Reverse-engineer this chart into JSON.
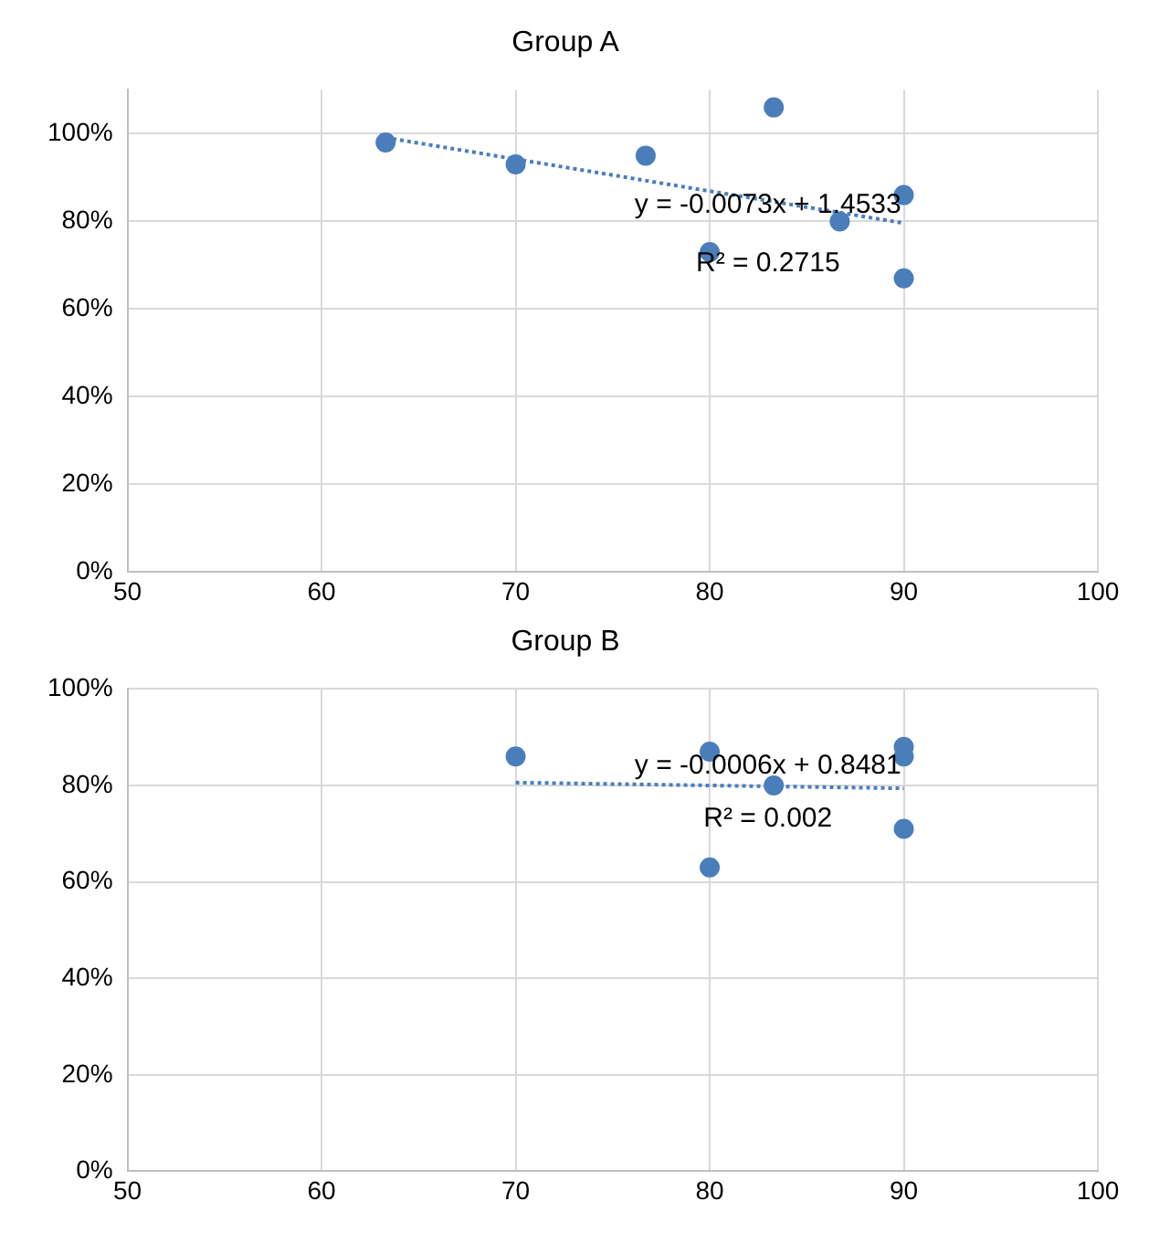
{
  "chart_data": [
    {
      "type": "scatter",
      "title": "Group A",
      "marker": "circle",
      "grid": true,
      "legend": false,
      "xlim": [
        50,
        100
      ],
      "xticks": [
        50,
        60,
        70,
        80,
        90,
        100
      ],
      "ylim": [
        0,
        1.1
      ],
      "yticks": [
        {
          "value": 0,
          "label": "0%"
        },
        {
          "value": 0.2,
          "label": "20%"
        },
        {
          "value": 0.4,
          "label": "40%"
        },
        {
          "value": 0.6,
          "label": "60%"
        },
        {
          "value": 0.8,
          "label": "80%"
        },
        {
          "value": 1,
          "label": "100%"
        }
      ],
      "series": [
        {
          "color": "#4a7ebb",
          "x": [
            63.3,
            70,
            76.7,
            83.3,
            80,
            86.7,
            90,
            90
          ],
          "values": [
            0.98,
            0.93,
            0.95,
            1.06,
            0.73,
            0.8,
            0.86,
            0.67
          ]
        },
        {
          "type": "line",
          "color": "#4a7ebb",
          "marker": "none",
          "line_style": "dotted",
          "x": [
            63.3,
            90
          ],
          "values": [
            0.991,
            0.796
          ]
        }
      ],
      "annotations": [
        "y = -0.0073x + 1.4533",
        "R² = 0.2715"
      ]
    },
    {
      "type": "scatter",
      "title": "Group B",
      "marker": "circle",
      "grid": true,
      "legend": false,
      "xlim": [
        50,
        100
      ],
      "xticks": [
        50,
        60,
        70,
        80,
        90,
        100
      ],
      "ylim": [
        0,
        1
      ],
      "yticks": [
        {
          "value": 0,
          "label": "0%"
        },
        {
          "value": 0.2,
          "label": "20%"
        },
        {
          "value": 0.4,
          "label": "40%"
        },
        {
          "value": 0.6,
          "label": "60%"
        },
        {
          "value": 0.8,
          "label": "80%"
        },
        {
          "value": 1,
          "label": "100%"
        }
      ],
      "series": [
        {
          "color": "#4a7ebb",
          "x": [
            70,
            80,
            80,
            83.3,
            90,
            90,
            90
          ],
          "values": [
            0.86,
            0.87,
            0.63,
            0.8,
            0.88,
            0.86,
            0.71
          ]
        },
        {
          "type": "line",
          "color": "#4a7ebb",
          "marker": "none",
          "line_style": "dotted",
          "x": [
            70,
            90
          ],
          "values": [
            0.806,
            0.794
          ]
        }
      ],
      "annotations": [
        "y = -0.0006x + 0.8481",
        "R² = 0.002"
      ]
    }
  ]
}
